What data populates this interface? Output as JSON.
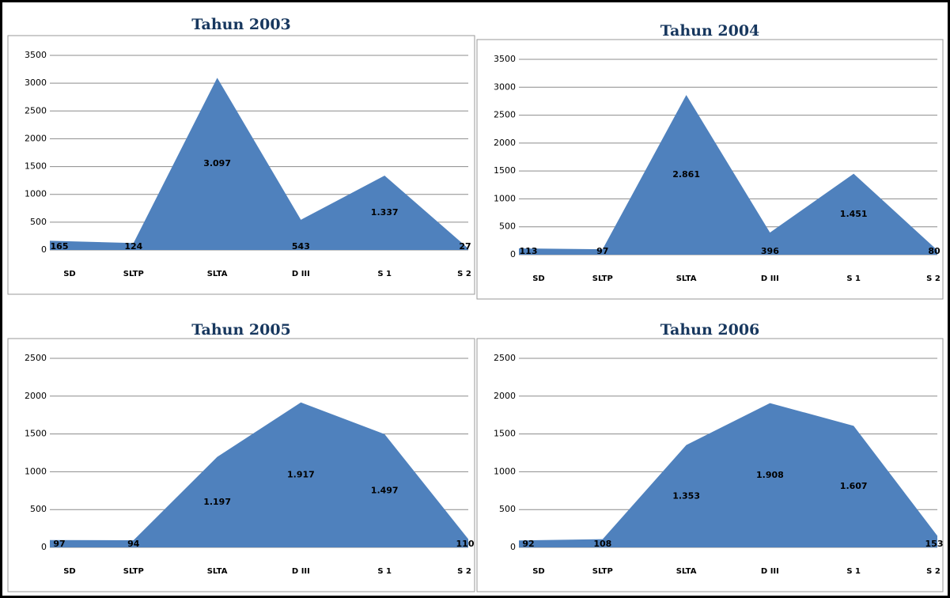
{
  "chart_data": [
    {
      "type": "area",
      "title": "Tahun 2003",
      "categories": [
        "SD",
        "SLTP",
        "SLTA",
        "D III",
        "S 1",
        "S 2"
      ],
      "values": [
        165,
        124,
        3097,
        543,
        1337,
        27
      ],
      "value_labels": [
        "165",
        "124",
        "3.097",
        "543",
        "1.337",
        "27"
      ],
      "color": "#4f81bd",
      "ylim": [
        0,
        3500
      ],
      "yticks": [
        0,
        500,
        1000,
        1500,
        2000,
        2500,
        3000,
        3500
      ],
      "grid": true
    },
    {
      "type": "area",
      "title": "Tahun 2004",
      "categories": [
        "SD",
        "SLTP",
        "SLTA",
        "D III",
        "S 1",
        "S 2"
      ],
      "values": [
        113,
        97,
        2861,
        396,
        1451,
        80
      ],
      "value_labels": [
        "113",
        "97",
        "2.861",
        "396",
        "1.451",
        "80"
      ],
      "color": "#4f81bd",
      "ylim": [
        0,
        3500
      ],
      "yticks": [
        0,
        500,
        1000,
        1500,
        2000,
        2500,
        3000,
        3500
      ],
      "grid": true
    },
    {
      "type": "area",
      "title": "Tahun 2005",
      "categories": [
        "SD",
        "SLTP",
        "SLTA",
        "D III",
        "S 1",
        "S 2"
      ],
      "values": [
        97,
        94,
        1197,
        1917,
        1497,
        110
      ],
      "value_labels": [
        "97",
        "94",
        "1.197",
        "1.917",
        "1.497",
        "110"
      ],
      "color": "#4f81bd",
      "ylim": [
        0,
        2500
      ],
      "yticks": [
        0,
        500,
        1000,
        1500,
        2000,
        2500
      ],
      "grid": true
    },
    {
      "type": "area",
      "title": "Tahun 2006",
      "categories": [
        "SD",
        "SLTP",
        "SLTA",
        "D III",
        "S 1",
        "S 2"
      ],
      "values": [
        92,
        108,
        1353,
        1908,
        1607,
        153
      ],
      "value_labels": [
        "92",
        "108",
        "1.353",
        "1.908",
        "1.607",
        "153"
      ],
      "color": "#4f81bd",
      "ylim": [
        0,
        2500
      ],
      "yticks": [
        0,
        500,
        1000,
        1500,
        2000,
        2500
      ],
      "grid": true
    }
  ]
}
